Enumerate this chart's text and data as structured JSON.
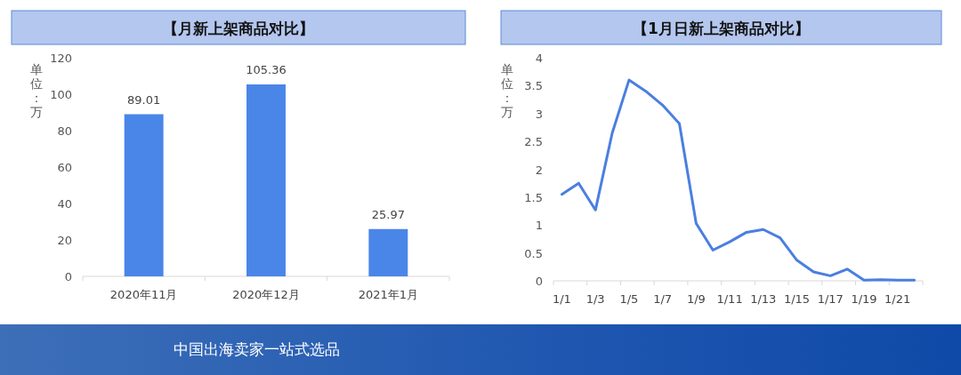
{
  "chart_data": [
    {
      "type": "bar",
      "title": "【月新上架商品对比】",
      "ylabel": "单位：万",
      "categories": [
        "2020年11月",
        "2020年12月",
        "2021年1月"
      ],
      "values": [
        89.01,
        105.36,
        25.97
      ],
      "color": "#4a86e8",
      "ylim": [
        0,
        120
      ],
      "yticks": [
        0,
        20,
        40,
        60,
        80,
        100,
        120
      ],
      "data_labels": true,
      "annotations": [
        "中国出海卖家一站式选品"
      ]
    },
    {
      "type": "line",
      "title": "【1月日新上架商品对比】",
      "ylabel": "单位：万",
      "categories": [
        "1/1",
        null,
        "1/3",
        null,
        "1/5",
        null,
        "1/7",
        null,
        "1/9",
        null,
        "1/11",
        null,
        "1/13",
        null,
        "1/15",
        null,
        "1/17",
        null,
        "1/19",
        null,
        "1/21",
        null
      ],
      "values": [
        1.55,
        1.75,
        1.27,
        2.65,
        3.6,
        3.4,
        3.15,
        2.82,
        1.03,
        0.55,
        0.7,
        0.87,
        0.92,
        0.77,
        0.37,
        0.16,
        0.09,
        0.21,
        0.01,
        0.02,
        0.01,
        0.01
      ],
      "color": "#4a7fe0",
      "ylim": [
        0,
        4
      ],
      "yticks": [
        0,
        {
          "value": 0.5,
          "label": "0.5"
        },
        1,
        {
          "value": 1.5,
          "label": "1.5"
        },
        2,
        {
          "value": 2.5,
          "label": "2.5"
        },
        3,
        {
          "value": 3.5,
          "label": "3.5"
        },
        4
      ]
    }
  ]
}
